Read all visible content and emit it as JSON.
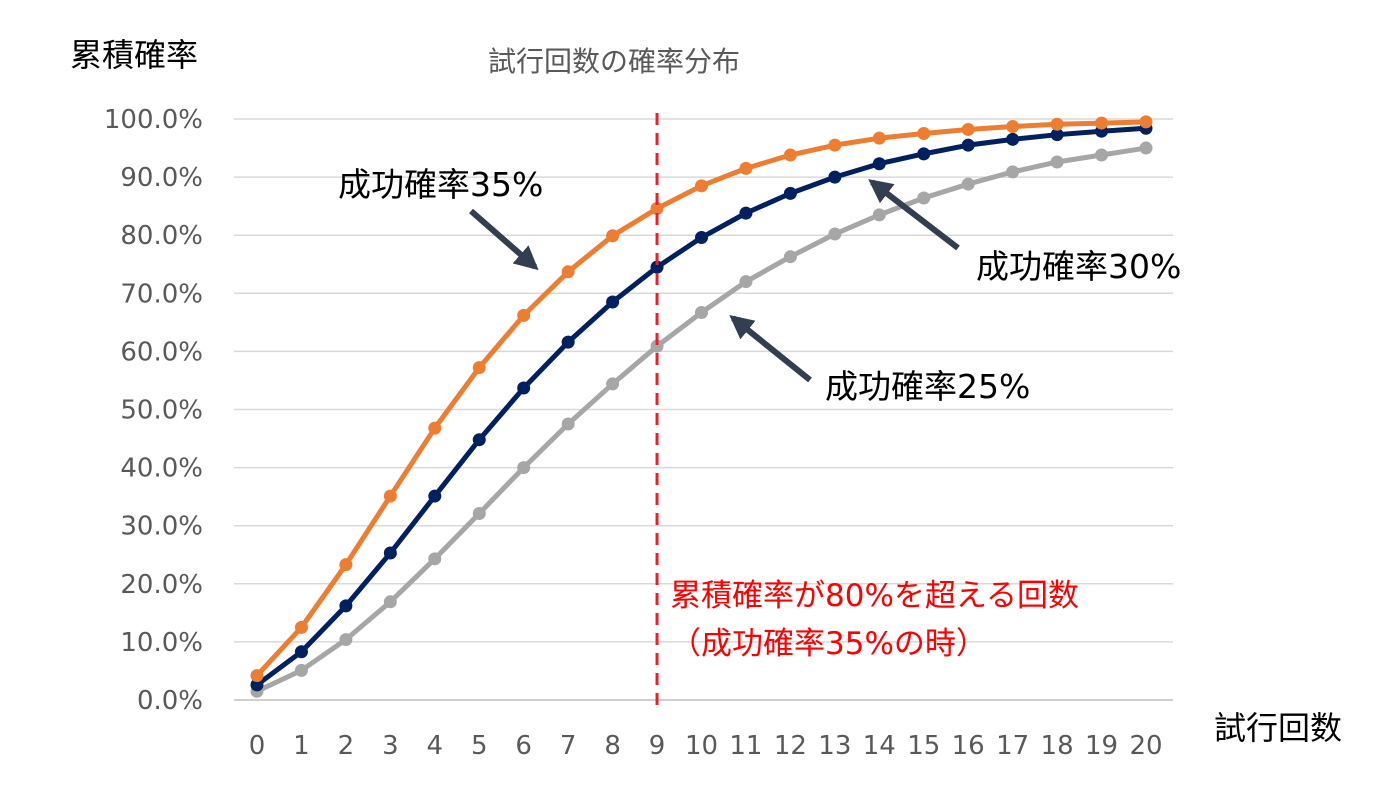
{
  "chart_data": {
    "type": "line",
    "title": "試行回数の確率分布",
    "ylabel": "累積確率",
    "xlabel": "試行回数",
    "ylim": [
      0,
      100
    ],
    "grid": true,
    "x": [
      0,
      1,
      2,
      3,
      4,
      5,
      6,
      7,
      8,
      9,
      10,
      11,
      12,
      13,
      14,
      15,
      16,
      17,
      18,
      19,
      20
    ],
    "y_ticks": [
      "0.0%",
      "10.0%",
      "20.0%",
      "30.0%",
      "40.0%",
      "50.0%",
      "60.0%",
      "70.0%",
      "80.0%",
      "90.0%",
      "100.0%"
    ],
    "series": [
      {
        "name": "成功確率35%",
        "color": "#ED7D31",
        "values": [
          4.2,
          12.5,
          23.3,
          35.1,
          46.8,
          57.2,
          66.2,
          73.7,
          79.9,
          84.6,
          88.5,
          91.5,
          93.8,
          95.5,
          96.7,
          97.5,
          98.2,
          98.7,
          99.1,
          99.3,
          99.5
        ]
      },
      {
        "name": "成功確率30%",
        "color": "#002060",
        "values": [
          2.6,
          8.3,
          16.2,
          25.3,
          35.1,
          44.8,
          53.7,
          61.6,
          68.5,
          74.5,
          79.6,
          83.8,
          87.2,
          90.0,
          92.3,
          94.0,
          95.5,
          96.5,
          97.3,
          97.9,
          98.4
        ]
      },
      {
        "name": "成功確率25%",
        "color": "#A6A6A6",
        "values": [
          1.5,
          5.1,
          10.4,
          16.9,
          24.3,
          32.1,
          40.0,
          47.5,
          54.4,
          60.9,
          66.7,
          72.0,
          76.3,
          80.2,
          83.5,
          86.4,
          88.8,
          90.9,
          92.6,
          93.8,
          95.0
        ]
      }
    ],
    "vline_x": 9,
    "annotations": [
      "累積確率が80%を超える回数",
      "（成功確率35%の時）"
    ]
  },
  "colors": {
    "vline": "#E8202A",
    "arrow": "#333F50",
    "note": "#FF0000"
  }
}
